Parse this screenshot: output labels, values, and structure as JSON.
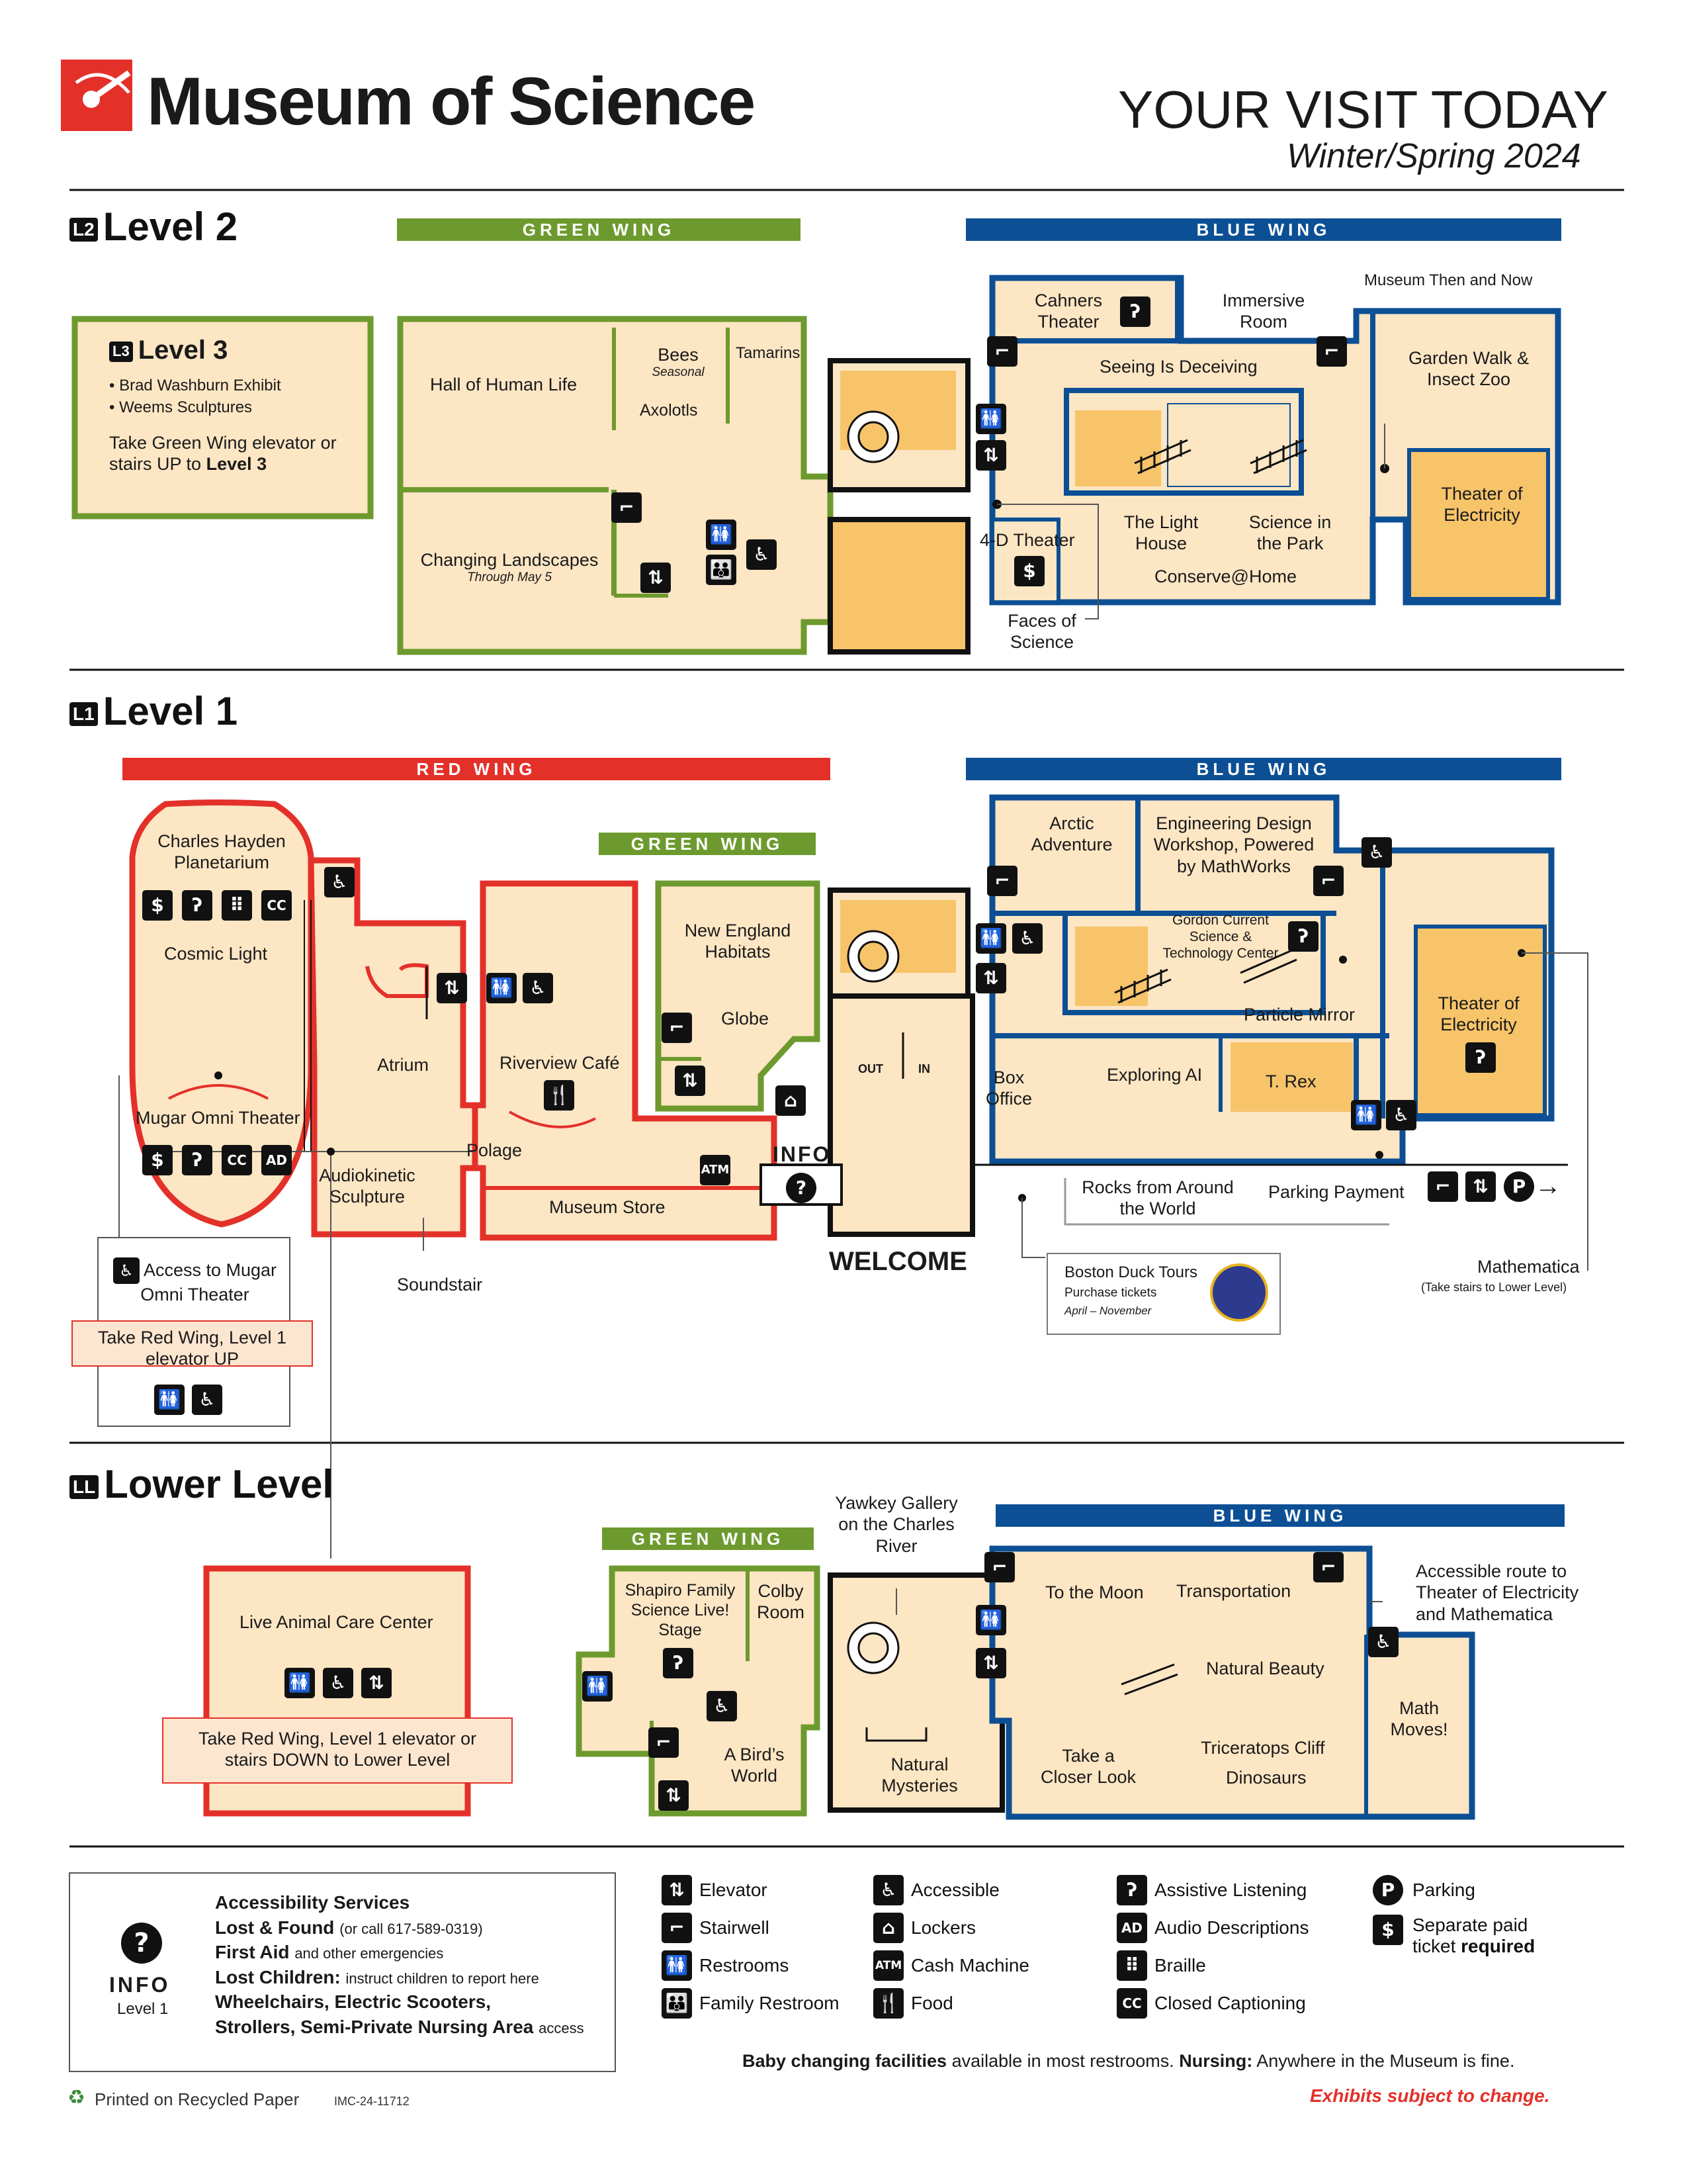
{
  "header": {
    "logo_text": "Museum of Science",
    "title": "YOUR VISIT TODAY",
    "subtitle": "Winter/Spring 2024"
  },
  "level2": {
    "badge": "L2",
    "title": "Level 2",
    "green_wing": "GREEN WING",
    "blue_wing": "BLUE WING",
    "level3": {
      "badge": "L3",
      "title": "Level 3",
      "items": [
        "Brad Washburn Exhibit",
        "Weems Sculptures"
      ],
      "note_plain": "Take Green Wing elevator or stairs UP to",
      "note_bold": "Level 3"
    },
    "rooms": {
      "hall_human_life": "Hall of Human Life",
      "bees": "Bees",
      "bees_note": "Seasonal",
      "tamarins": "Tamarins",
      "axolotls": "Axolotls",
      "changing_landscapes": "Changing Landscapes",
      "changing_landscapes_note": "Through May 5",
      "cahners": "Cahners Theater",
      "immersive": "Immersive Room",
      "seeing": "Seeing Is Deceiving",
      "museum_then_now": "Museum Then and Now",
      "garden_walk": "Garden Walk & Insect Zoo",
      "theater_electricity": "Theater of Electricity",
      "four_d": "4-D Theater",
      "light_house": "The Light House",
      "science_park": "Science in the Park",
      "conserve": "Conserve@Home",
      "faces": "Faces of Science"
    }
  },
  "level1": {
    "badge": "L1",
    "title": "Level 1",
    "red_wing": "RED WING",
    "green_wing": "GREEN WING",
    "blue_wing": "BLUE WING",
    "rooms": {
      "planetarium": "Charles Hayden Planetarium",
      "cosmic_light": "Cosmic Light",
      "omni": "Mugar Omni Theater",
      "atrium": "Atrium",
      "audiokinetic": "Audiokinetic Sculpture",
      "soundstair": "Soundstair",
      "riverview": "Riverview Café",
      "polage": "Polage",
      "museum_store": "Museum Store",
      "new_england": "New England Habitats",
      "globe": "Globe",
      "info": "INFO",
      "welcome": "WELCOME",
      "out": "OUT",
      "in": "IN",
      "atm": "ATM",
      "box_office": "Box Office",
      "arctic": "Arctic Adventure",
      "engineering": "Engineering Design Workshop, Powered by MathWorks",
      "gordon": "Gordon Current Science & Technology Center",
      "particle_mirror": "Particle Mirror",
      "theater_electricity": "Theater of Electricity",
      "exploring_ai": "Exploring AI",
      "trex": "T. Rex",
      "rocks": "Rocks from Around the World",
      "parking_payment": "Parking Payment",
      "duck_tours": "Boston Duck Tours",
      "duck_purchase": "Purchase tickets",
      "duck_dates": "April – November",
      "mathematica": "Mathematica",
      "mathematica_note": "(Take stairs to Lower Level)",
      "access_omni": "Access to Mugar Omni Theater",
      "take_red_up": "Take Red Wing, Level 1 elevator UP"
    }
  },
  "lower": {
    "badge": "LL",
    "title": "Lower Level",
    "green_wing": "GREEN WING",
    "blue_wing": "BLUE WING",
    "rooms": {
      "live_animal": "Live Animal Care Center",
      "take_red_down": "Take Red Wing, Level 1 elevator or stairs DOWN to Lower Level",
      "yawkey": "Yawkey Gallery on the Charles River",
      "shapiro": "Shapiro Family Science Live! Stage",
      "colby": "Colby Room",
      "birds": "A Bird’s World",
      "natural_mysteries": "Natural Mysteries",
      "to_moon": "To the Moon",
      "transportation": "Transportation",
      "natural_beauty": "Natural Beauty",
      "closer_look": "Take a Closer Look",
      "triceratops": "Triceratops Cliff",
      "dinosaurs": "Dinosaurs",
      "math_moves": "Math Moves!",
      "accessible_route": "Accessible route to Theater of Electricity and Mathematica"
    }
  },
  "services": {
    "info": "INFO",
    "info_level": "Level 1",
    "accessibility": "Accessibility Services",
    "lost_found": "Lost & Found",
    "lost_found_note": "(or call 617-589-0319)",
    "first_aid": "First Aid",
    "first_aid_note": "and other emergencies",
    "lost_children": "Lost Children:",
    "lost_children_note": "instruct children to report here",
    "wheelchairs": "Wheelchairs, Electric Scooters,",
    "strollers": "Strollers, Semi-Private Nursing Area",
    "strollers_note": "access"
  },
  "legend": {
    "elevator": "Elevator",
    "stairwell": "Stairwell",
    "restrooms": "Restrooms",
    "family_restroom": "Family Restroom",
    "accessible": "Accessible",
    "lockers": "Lockers",
    "cash_machine": "Cash Machine",
    "food": "Food",
    "assistive": "Assistive Listening",
    "audio_desc": "Audio Descriptions",
    "braille": "Braille",
    "closed_caption": "Closed Captioning",
    "parking": "Parking",
    "separate_paid": "Separate paid",
    "ticket_required_plain": "ticket",
    "ticket_required_bold": "required"
  },
  "footer": {
    "baby_bold": "Baby changing facilities",
    "baby_note": "available in most restrooms.",
    "nursing_bold": "Nursing:",
    "nursing_note": "Anywhere in the Museum is fine.",
    "recycled": "Printed on Recycled Paper",
    "code": "IMC-24-11712",
    "exhibits": "Exhibits subject to change."
  },
  "colors": {
    "red": "#e3312a",
    "green": "#6d9a2e",
    "blue": "#0c4f94",
    "room_fill": "#fde6c4",
    "highlight_fill": "#f7c46a"
  },
  "icons": [
    "elevator-icon",
    "stairwell-icon",
    "restroom-icon",
    "family-restroom-icon",
    "accessible-icon",
    "lockers-icon",
    "atm-icon",
    "food-icon",
    "assistive-listening-icon",
    "audio-description-icon",
    "braille-icon",
    "closed-caption-icon",
    "parking-icon",
    "dollar-icon",
    "info-icon"
  ]
}
